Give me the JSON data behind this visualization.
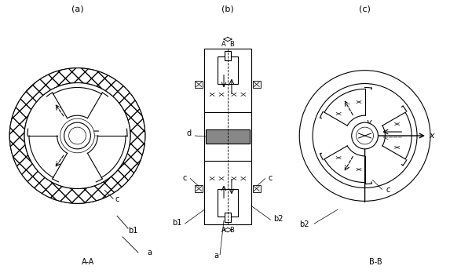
{
  "bg_color": "#ffffff",
  "line_color": "#000000",
  "gray_color": "#808080",
  "label_a": "(a)",
  "label_b": "(b)",
  "label_c": "(c)",
  "tag_AA": "A-A",
  "tag_BB": "B-B",
  "tag_a": "a",
  "tag_b1": "b1",
  "tag_b2": "b2",
  "tag_c": "c",
  "tag_d": "d",
  "tag_x": "x",
  "tag_y": "y",
  "disk_fill": "#888888",
  "light_gray": "#dddddd",
  "coil_face": "#f0f0f0"
}
